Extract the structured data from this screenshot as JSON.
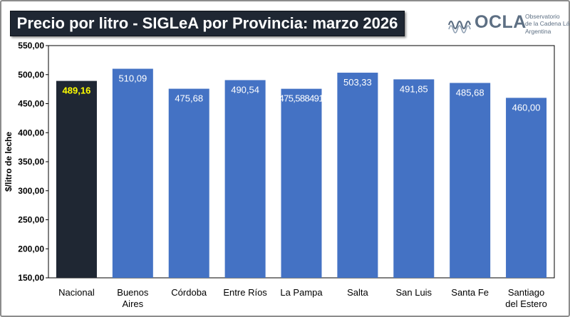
{
  "header": {
    "title": "Precio por litro - SIGLeA por Provincia: marzo 2026"
  },
  "logo": {
    "name": "OCLA",
    "line1": "Observatorio",
    "line2": "de la Cadena Láctea",
    "line3": "Argentina",
    "icon": "waveform-icon",
    "color": "#5d6f83"
  },
  "chart_data": {
    "type": "bar",
    "title": "Precio por litro - SIGLeA por Provincia: marzo 2026",
    "ylabel": "$/litro de leche",
    "xlabel": "",
    "ylim": [
      150,
      550
    ],
    "yticks": [
      "150,00",
      "200,00",
      "250,00",
      "300,00",
      "350,00",
      "400,00",
      "450,00",
      "500,00",
      "550,00"
    ],
    "categories": [
      [
        "Nacional"
      ],
      [
        "Buenos",
        "Aires"
      ],
      [
        "Córdoba"
      ],
      [
        "Entre Ríos"
      ],
      [
        "La Pampa"
      ],
      [
        "Salta"
      ],
      [
        "San Luis"
      ],
      [
        "Santa Fe"
      ],
      [
        "Santiago",
        "del Estero"
      ]
    ],
    "values": [
      489.16,
      510.09,
      475.68,
      490.54,
      475.588491,
      503.33,
      491.85,
      485.68,
      460.0
    ],
    "labels": [
      "489,16",
      "510,09",
      "475,68",
      "490,54",
      "475,588491",
      "503,33",
      "491,85",
      "485,68",
      "460,00"
    ],
    "highlight_index": 0,
    "colors": {
      "bar": "#4472c4",
      "highlight_bar": "#1f2733",
      "label": "#ffffff",
      "highlight_label": "#ffff00"
    },
    "grid": false,
    "legend": "none"
  }
}
